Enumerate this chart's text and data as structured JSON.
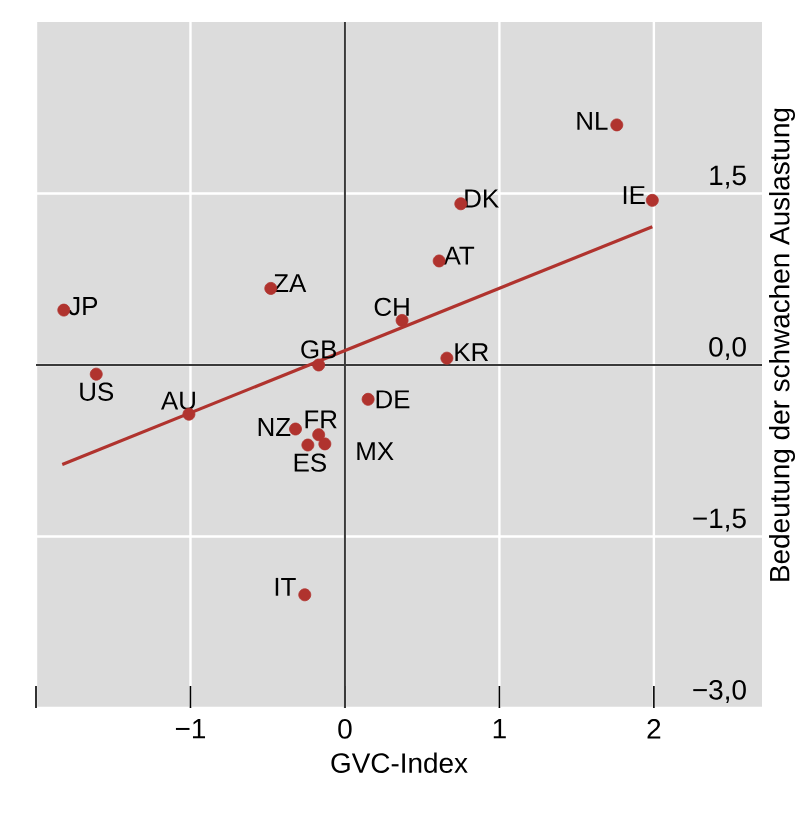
{
  "chart_data": {
    "type": "scatter",
    "xlabel": "GVC-Index",
    "ylabel": "Bedeutung der schwachen Auslastung",
    "xlim": [
      -2,
      2.7
    ],
    "ylim": [
      -3,
      3
    ],
    "xticks": [
      {
        "value": -2,
        "label": null
      },
      {
        "value": -1,
        "label": "−1"
      },
      0,
      1,
      2
    ],
    "yticks": [
      {
        "value": -3,
        "label": "−3,0"
      },
      {
        "value": -1.5,
        "label": "−1,5"
      },
      {
        "value": 0,
        "label": "0,0"
      },
      {
        "value": 1.5,
        "label": "1,5"
      }
    ],
    "grid": true,
    "series": [
      {
        "color": "#b0332e",
        "marker": "circle",
        "x": [
          1.76,
          0.75,
          1.99,
          0.61,
          -0.48,
          -1.82,
          0.37,
          -0.17,
          0.66,
          -1.61,
          0.15,
          -1.01,
          -0.32,
          -0.17,
          -0.13,
          -0.24,
          -0.26
        ],
        "values": [
          2.1,
          1.41,
          1.44,
          0.91,
          0.67,
          0.48,
          0.39,
          0.0,
          0.06,
          -0.08,
          -0.3,
          -0.43,
          -0.56,
          -0.61,
          -0.69,
          -0.7,
          -2.01
        ]
      },
      {
        "type": "line",
        "color": "#b0332e",
        "marker": "none",
        "x": [
          -1.83,
          1.99
        ],
        "values": [
          -0.87,
          1.21
        ]
      }
    ],
    "annotations": [
      {
        "text": "NL",
        "x": 1.76,
        "y": 2.1
      },
      {
        "text": "DK",
        "x": 0.75,
        "y": 1.41
      },
      {
        "text": "IE",
        "x": 1.99,
        "y": 1.44
      },
      {
        "text": "AT",
        "x": 0.61,
        "y": 0.91
      },
      {
        "text": "ZA",
        "x": -0.48,
        "y": 0.67
      },
      {
        "text": "JP",
        "x": -1.82,
        "y": 0.48
      },
      {
        "text": "CH",
        "x": 0.37,
        "y": 0.39
      },
      {
        "text": "GB",
        "x": -0.17,
        "y": 0.0
      },
      {
        "text": "KR",
        "x": 0.66,
        "y": 0.06
      },
      {
        "text": "US",
        "x": -1.61,
        "y": -0.08
      },
      {
        "text": "DE",
        "x": 0.15,
        "y": -0.3
      },
      {
        "text": "AU",
        "x": -1.01,
        "y": -0.43
      },
      {
        "text": "NZ",
        "x": -0.32,
        "y": -0.56
      },
      {
        "text": "FR",
        "x": -0.17,
        "y": -0.61
      },
      {
        "text": "MX",
        "x": -0.13,
        "y": -0.69
      },
      {
        "text": "ES",
        "x": -0.24,
        "y": -0.7
      },
      {
        "text": "IT",
        "x": -0.26,
        "y": -2.01
      }
    ]
  }
}
